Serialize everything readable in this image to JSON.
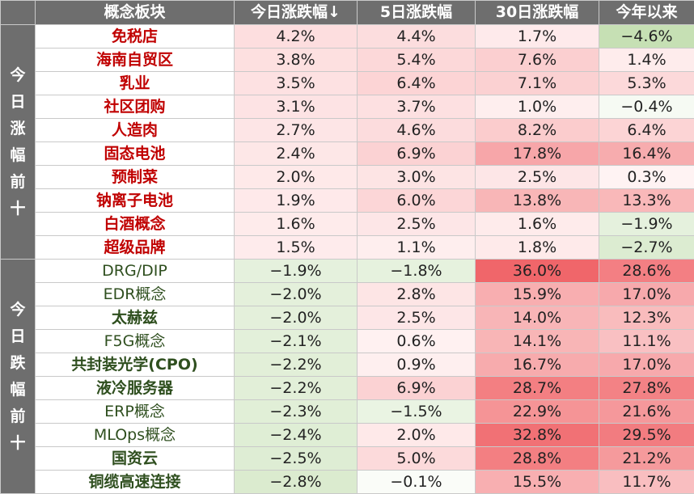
{
  "headers": {
    "concept": "概念板块",
    "today": "今日涨跌幅↓",
    "d5": "5日涨跌幅",
    "d30": "30日涨跌幅",
    "ytd": "今年以来"
  },
  "groups": {
    "up_label": "今日涨幅前十",
    "down_label": "今日跌幅前十"
  },
  "colors": {
    "positive_max": "#f0666a",
    "negative_max": "#c6e0b4",
    "header_bg": "#6e6e6e",
    "up_text": "#c00000",
    "down_text": "#2f4f1f"
  },
  "rows_up": [
    {
      "name": "免税店",
      "today": 4.2,
      "d5": 4.4,
      "d30": 1.7,
      "ytd": -4.6
    },
    {
      "name": "海南自贸区",
      "today": 3.8,
      "d5": 5.4,
      "d30": 7.6,
      "ytd": 1.4
    },
    {
      "name": "乳业",
      "today": 3.5,
      "d5": 6.4,
      "d30": 7.1,
      "ytd": 5.3
    },
    {
      "name": "社区团购",
      "today": 3.1,
      "d5": 3.7,
      "d30": 1.0,
      "ytd": -0.4
    },
    {
      "name": "人造肉",
      "today": 2.7,
      "d5": 4.6,
      "d30": 8.2,
      "ytd": 6.4
    },
    {
      "name": "固态电池",
      "today": 2.4,
      "d5": 6.9,
      "d30": 17.8,
      "ytd": 16.4
    },
    {
      "name": "预制菜",
      "today": 2.0,
      "d5": 3.0,
      "d30": 2.5,
      "ytd": 0.3
    },
    {
      "name": "钠离子电池",
      "today": 1.9,
      "d5": 6.0,
      "d30": 13.8,
      "ytd": 13.3
    },
    {
      "name": "白酒概念",
      "today": 1.6,
      "d5": 2.5,
      "d30": 1.6,
      "ytd": -1.9
    },
    {
      "name": "超级品牌",
      "today": 1.5,
      "d5": 1.1,
      "d30": 1.8,
      "ytd": -2.7
    }
  ],
  "rows_down": [
    {
      "name": "DRG/DIP",
      "today": -1.9,
      "d5": -1.8,
      "d30": 36.0,
      "ytd": 28.6
    },
    {
      "name": "EDR概念",
      "today": -2.0,
      "d5": 2.8,
      "d30": 15.9,
      "ytd": 17.0
    },
    {
      "name": "太赫兹",
      "today": -2.0,
      "d5": 2.5,
      "d30": 14.0,
      "ytd": 12.3
    },
    {
      "name": "F5G概念",
      "today": -2.1,
      "d5": 0.6,
      "d30": 14.1,
      "ytd": 11.1
    },
    {
      "name": "共封装光学(CPO)",
      "today": -2.2,
      "d5": 0.9,
      "d30": 16.7,
      "ytd": 17.0
    },
    {
      "name": "液冷服务器",
      "today": -2.2,
      "d5": 6.9,
      "d30": 28.7,
      "ytd": 27.8
    },
    {
      "name": "ERP概念",
      "today": -2.3,
      "d5": -1.5,
      "d30": 22.9,
      "ytd": 21.6
    },
    {
      "name": "MLOps概念",
      "today": -2.4,
      "d5": 2.0,
      "d30": 32.8,
      "ytd": 29.5
    },
    {
      "name": "国资云",
      "today": -2.5,
      "d5": 5.0,
      "d30": 28.8,
      "ytd": 21.2
    },
    {
      "name": "铜缆高速连接",
      "today": -2.8,
      "d5": -0.1,
      "d30": 15.5,
      "ytd": 11.7
    }
  ]
}
